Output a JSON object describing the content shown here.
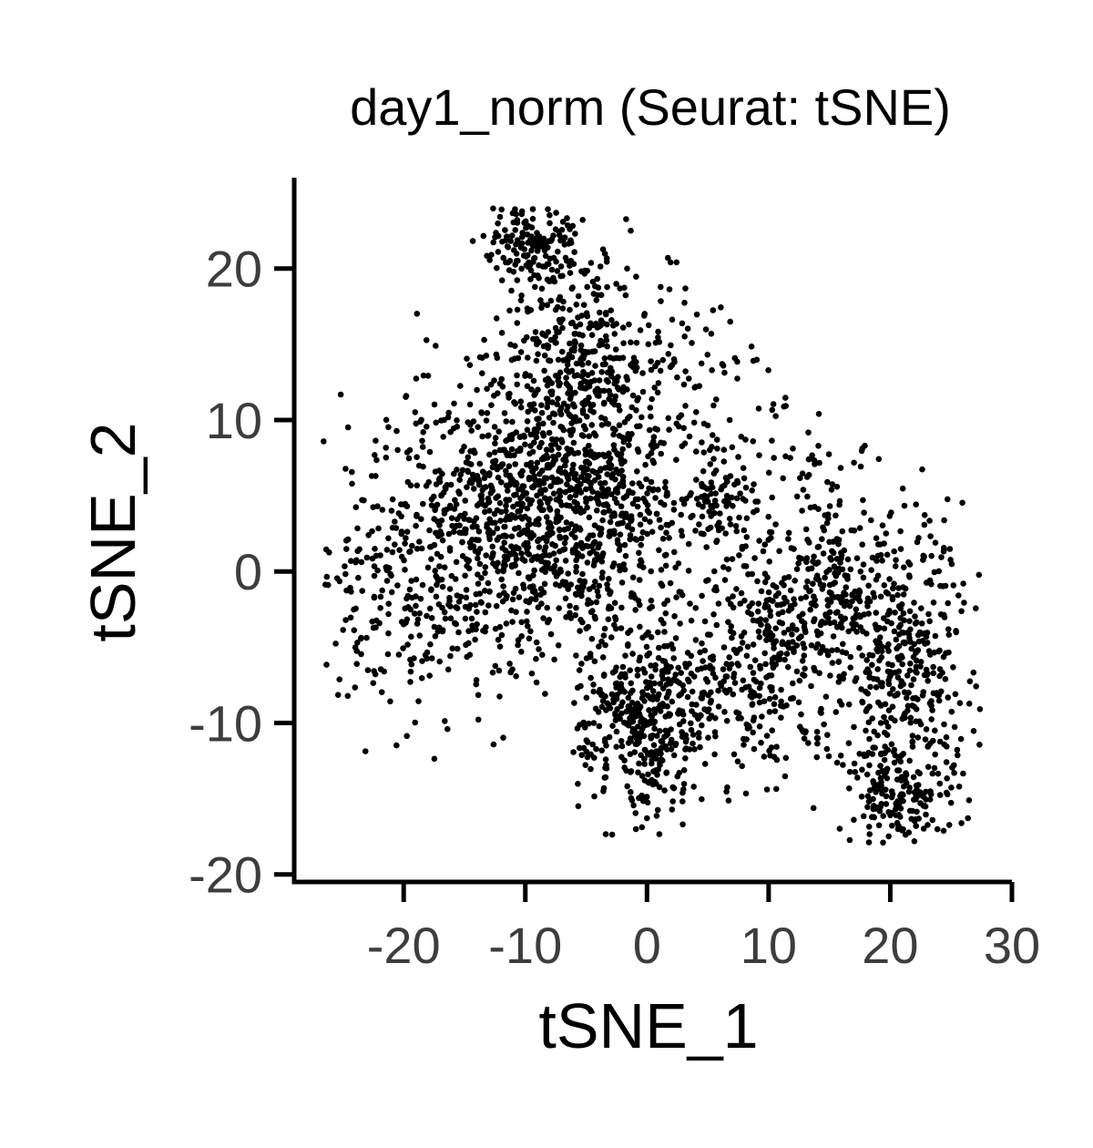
{
  "chart_data": {
    "type": "scatter",
    "title": "day1_norm (Seurat: tSNE)",
    "xlabel": "tSNE_1",
    "ylabel": "tSNE_2",
    "xlim": [
      -29,
      30
    ],
    "ylim": [
      -20.5,
      26
    ],
    "xticks": [
      -20,
      -10,
      0,
      10,
      20,
      30
    ],
    "yticks": [
      -20,
      -10,
      0,
      10,
      20
    ],
    "xtick_labels": [
      "-20",
      "-10",
      "0",
      "10",
      "20",
      "30"
    ],
    "ytick_labels": [
      "-20",
      "-10",
      "0",
      "10",
      "20"
    ],
    "grid": false,
    "legend": "none",
    "point_color": "#000000",
    "clusters": [
      {
        "cx": -9,
        "cy": 21.5,
        "sx": 2.0,
        "sy": 1.4,
        "n": 170
      },
      {
        "cx": -5,
        "cy": 14.5,
        "sx": 3.2,
        "sy": 3.0,
        "n": 300
      },
      {
        "cx": -6,
        "cy": 4.0,
        "sx": 4.5,
        "sy": 3.8,
        "n": 650
      },
      {
        "cx": -16,
        "cy": 0.0,
        "sx": 5.5,
        "sy": 4.5,
        "n": 520
      },
      {
        "cx": -10,
        "cy": 8.0,
        "sx": 5.0,
        "sy": 4.0,
        "n": 300
      },
      {
        "cx": 0,
        "cy": -9.5,
        "sx": 2.6,
        "sy": 3.2,
        "n": 450
      },
      {
        "cx": 6,
        "cy": 4.5,
        "sx": 1.6,
        "sy": 1.6,
        "n": 80
      },
      {
        "cx": 9,
        "cy": -6.0,
        "sx": 3.3,
        "sy": 4.0,
        "n": 320
      },
      {
        "cx": 15,
        "cy": -2.0,
        "sx": 3.0,
        "sy": 3.2,
        "n": 180
      },
      {
        "cx": 21,
        "cy": -6.0,
        "sx": 3.0,
        "sy": 4.5,
        "n": 420
      },
      {
        "cx": 21,
        "cy": -15.0,
        "sx": 2.2,
        "sy": 1.7,
        "n": 160
      },
      {
        "cx": 4,
        "cy": 10.0,
        "sx": 3.0,
        "sy": 4.0,
        "n": 110
      },
      {
        "cx": 14,
        "cy": 5.0,
        "sx": 3.0,
        "sy": 2.5,
        "n": 60
      }
    ]
  }
}
